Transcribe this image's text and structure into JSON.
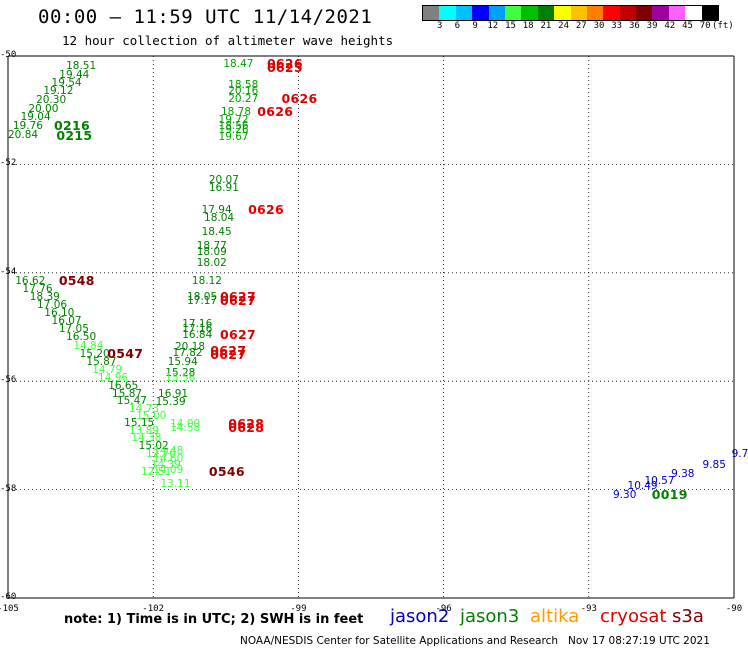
{
  "header": {
    "title": "00:00 – 11:59 UTC 11/14/2021",
    "subtitle": "12 hour collection of altimeter wave heights"
  },
  "color_scale": {
    "colors": [
      "#808080",
      "#00ffff",
      "#00c0ff",
      "#0000ff",
      "#00a0ff",
      "#40ff40",
      "#00c000",
      "#008000",
      "#ffff00",
      "#ffc000",
      "#ff8000",
      "#ff0000",
      "#c00000",
      "#800000",
      "#a000a0",
      "#ff60ff",
      "#ffffff",
      "#000000"
    ],
    "labels": [
      "3",
      "6",
      "9",
      "12",
      "15",
      "18",
      "21",
      "24",
      "27",
      "30",
      "33",
      "36",
      "39",
      "42",
      "45",
      "70",
      "(ft)"
    ]
  },
  "axes": {
    "lat_labels": [
      "-50",
      "-52",
      "-54",
      "-56",
      "-58",
      "-60"
    ],
    "lon_labels": [
      "-105",
      "-102",
      "-99",
      "-96",
      "-93",
      "-90"
    ]
  },
  "satellites": {
    "jason2": {
      "name": "jason2",
      "color": "#0000c0"
    },
    "jason3": {
      "name": "jason3",
      "color": "#008000"
    },
    "altika": {
      "name": "altika",
      "color": "#ff9900"
    },
    "cryosat": {
      "name": "cryosat",
      "color": "#e00000"
    },
    "s3a": {
      "name": "s3a",
      "color": "#800000"
    }
  },
  "observations": [
    {
      "text": "18.51",
      "lon": -103.8,
      "lat": -50.1,
      "c": "#008000"
    },
    {
      "text": "19.44",
      "lon": -103.94,
      "lat": -50.25,
      "c": "#008000"
    },
    {
      "text": "19.54",
      "lon": -104.1,
      "lat": -50.4,
      "c": "#008000"
    },
    {
      "text": "19.12",
      "lon": -104.27,
      "lat": -50.56,
      "c": "#008000"
    },
    {
      "text": "20.30",
      "lon": -104.42,
      "lat": -50.72,
      "c": "#008000"
    },
    {
      "text": "20.00",
      "lon": -104.58,
      "lat": -50.88,
      "c": "#008000"
    },
    {
      "text": "19.04",
      "lon": -104.74,
      "lat": -51.04,
      "c": "#008000"
    },
    {
      "text": "19.76",
      "lon": -104.9,
      "lat": -51.2,
      "c": "#008000"
    },
    {
      "text": "20.84",
      "lon": -105.0,
      "lat": -51.36,
      "c": "#008000"
    },
    {
      "text": "0216",
      "lon": -104.05,
      "lat": -51.2,
      "c": "#008000",
      "tag": true
    },
    {
      "text": "0215",
      "lon": -104.0,
      "lat": -51.38,
      "c": "#008000",
      "tag": true
    },
    {
      "text": "18.47",
      "lon": -100.55,
      "lat": -50.05,
      "c": "#00a000"
    },
    {
      "text": "18.58",
      "lon": -100.45,
      "lat": -50.45,
      "c": "#00a000"
    },
    {
      "text": "20.16",
      "lon": -100.45,
      "lat": -50.55,
      "c": "#00a000"
    },
    {
      "text": "20.27",
      "lon": -100.45,
      "lat": -50.7,
      "c": "#00a000"
    },
    {
      "text": "18.78",
      "lon": -100.6,
      "lat": -50.95,
      "c": "#00a000"
    },
    {
      "text": "19.72",
      "lon": -100.65,
      "lat": -51.08,
      "c": "#00a000"
    },
    {
      "text": "18.56",
      "lon": -100.65,
      "lat": -51.2,
      "c": "#00a000"
    },
    {
      "text": "19.26",
      "lon": -100.65,
      "lat": -51.28,
      "c": "#00a000"
    },
    {
      "text": "19.67",
      "lon": -100.65,
      "lat": -51.4,
      "c": "#00a000"
    },
    {
      "text": "0626",
      "lon": -99.65,
      "lat": -50.05,
      "c": "#e00000",
      "tag": true
    },
    {
      "text": "0625",
      "lon": -99.65,
      "lat": -50.12,
      "c": "#e00000",
      "tag": true
    },
    {
      "text": "0626",
      "lon": -99.35,
      "lat": -50.7,
      "c": "#e00000",
      "tag": true
    },
    {
      "text": "0626",
      "lon": -99.85,
      "lat": -50.95,
      "c": "#e00000",
      "tag": true
    },
    {
      "text": "20.07",
      "lon": -100.85,
      "lat": -52.2,
      "c": "#008000"
    },
    {
      "text": "16.91",
      "lon": -100.85,
      "lat": -52.35,
      "c": "#008000"
    },
    {
      "text": "17.94",
      "lon": -101.0,
      "lat": -52.75,
      "c": "#008000"
    },
    {
      "text": "18.04",
      "lon": -100.95,
      "lat": -52.9,
      "c": "#008000"
    },
    {
      "text": "18.45",
      "lon": -101.0,
      "lat": -53.15,
      "c": "#008000"
    },
    {
      "text": "18.77",
      "lon": -101.1,
      "lat": -53.42,
      "c": "#008000"
    },
    {
      "text": "18.09",
      "lon": -101.1,
      "lat": -53.52,
      "c": "#008000"
    },
    {
      "text": "18.02",
      "lon": -101.1,
      "lat": -53.72,
      "c": "#008000"
    },
    {
      "text": "18.12",
      "lon": -101.2,
      "lat": -54.05,
      "c": "#008000"
    },
    {
      "text": "0626",
      "lon": -100.04,
      "lat": -52.75,
      "c": "#e00000",
      "tag": true
    },
    {
      "text": "16.62",
      "lon": -104.85,
      "lat": -54.05,
      "c": "#008000"
    },
    {
      "text": "17.76",
      "lon": -104.7,
      "lat": -54.2,
      "c": "#008000"
    },
    {
      "text": "18.39",
      "lon": -104.55,
      "lat": -54.35,
      "c": "#008000"
    },
    {
      "text": "17.06",
      "lon": -104.4,
      "lat": -54.5,
      "c": "#008000"
    },
    {
      "text": "16.10",
      "lon": -104.25,
      "lat": -54.65,
      "c": "#008000"
    },
    {
      "text": "16.07",
      "lon": -104.1,
      "lat": -54.8,
      "c": "#008000"
    },
    {
      "text": "17.05",
      "lon": -103.95,
      "lat": -54.95,
      "c": "#008000"
    },
    {
      "text": "16.50",
      "lon": -103.8,
      "lat": -55.1,
      "c": "#008000"
    },
    {
      "text": "14.84",
      "lon": -103.65,
      "lat": -55.25,
      "c": "#40ff40"
    },
    {
      "text": "15.20",
      "lon": -103.52,
      "lat": -55.4,
      "c": "#008000"
    },
    {
      "text": "15.87",
      "lon": -103.38,
      "lat": -55.55,
      "c": "#008000"
    },
    {
      "text": "14.79",
      "lon": -103.26,
      "lat": -55.7,
      "c": "#40ff40"
    },
    {
      "text": "14.96",
      "lon": -103.14,
      "lat": -55.85,
      "c": "#40ff40"
    },
    {
      "text": "16.65",
      "lon": -102.93,
      "lat": -56.0,
      "c": "#008000"
    },
    {
      "text": "15.87",
      "lon": -102.85,
      "lat": -56.15,
      "c": "#008000"
    },
    {
      "text": "15.47",
      "lon": -102.75,
      "lat": -56.28,
      "c": "#008000"
    },
    {
      "text": "14.73",
      "lon": -102.5,
      "lat": -56.42,
      "c": "#40ff40"
    },
    {
      "text": "15.00",
      "lon": -102.35,
      "lat": -56.55,
      "c": "#40ff40"
    },
    {
      "text": "15.15",
      "lon": -102.6,
      "lat": -56.68,
      "c": "#008000"
    },
    {
      "text": "13.89",
      "lon": -102.5,
      "lat": -56.82,
      "c": "#40ff40"
    },
    {
      "text": "14.38",
      "lon": -102.45,
      "lat": -56.95,
      "c": "#40ff40"
    },
    {
      "text": "15.02",
      "lon": -102.3,
      "lat": -57.1,
      "c": "#008000"
    },
    {
      "text": "12.70",
      "lon": -102.15,
      "lat": -57.25,
      "c": "#40ff40"
    },
    {
      "text": "14.39",
      "lon": -102.05,
      "lat": -57.45,
      "c": "#40ff40"
    },
    {
      "text": "12.51",
      "lon": -102.25,
      "lat": -57.58,
      "c": "#40ff40"
    },
    {
      "text": "13.11",
      "lon": -101.85,
      "lat": -57.8,
      "c": "#40ff40"
    },
    {
      "text": "0548",
      "lon": -103.95,
      "lat": -54.05,
      "c": "#800000",
      "tag": true
    },
    {
      "text": "0547",
      "lon": -102.95,
      "lat": -55.4,
      "c": "#800000",
      "tag": true
    },
    {
      "text": "18.05",
      "lon": -101.3,
      "lat": -54.35,
      "c": "#008000"
    },
    {
      "text": "17.17",
      "lon": -101.3,
      "lat": -54.42,
      "c": "#008000"
    },
    {
      "text": "17.16",
      "lon": -101.4,
      "lat": -54.85,
      "c": "#008000"
    },
    {
      "text": "17.16",
      "lon": -101.4,
      "lat": -54.95,
      "c": "#008000"
    },
    {
      "text": "16.84",
      "lon": -101.4,
      "lat": -55.05,
      "c": "#008000"
    },
    {
      "text": "20.18",
      "lon": -101.55,
      "lat": -55.28,
      "c": "#008000"
    },
    {
      "text": "17.82",
      "lon": -101.6,
      "lat": -55.38,
      "c": "#008000"
    },
    {
      "text": "15.94",
      "lon": -101.7,
      "lat": -55.55,
      "c": "#008000"
    },
    {
      "text": "15.28",
      "lon": -101.75,
      "lat": -55.75,
      "c": "#008000"
    },
    {
      "text": "15.56",
      "lon": -101.75,
      "lat": -55.85,
      "c": "#40ff40"
    },
    {
      "text": "16.91",
      "lon": -101.9,
      "lat": -56.15,
      "c": "#008000"
    },
    {
      "text": "15.39",
      "lon": -101.95,
      "lat": -56.3,
      "c": "#008000"
    },
    {
      "text": "0627",
      "lon": -100.62,
      "lat": -54.35,
      "c": "#e00000",
      "tag": true
    },
    {
      "text": "0627",
      "lon": -100.62,
      "lat": -54.42,
      "c": "#e00000",
      "tag": true
    },
    {
      "text": "0627",
      "lon": -100.62,
      "lat": -55.05,
      "c": "#e00000",
      "tag": true
    },
    {
      "text": "0627",
      "lon": -100.82,
      "lat": -55.35,
      "c": "#e00000",
      "tag": true
    },
    {
      "text": "0627",
      "lon": -100.82,
      "lat": -55.42,
      "c": "#e00000",
      "tag": true
    },
    {
      "text": "14.00",
      "lon": -101.65,
      "lat": -56.7,
      "c": "#40ff40"
    },
    {
      "text": "14.58",
      "lon": -101.65,
      "lat": -56.77,
      "c": "#40ff40"
    },
    {
      "text": "14.48",
      "lon": -102.0,
      "lat": -57.2,
      "c": "#40ff40"
    },
    {
      "text": "14.60",
      "lon": -102.0,
      "lat": -57.35,
      "c": "#40ff40"
    },
    {
      "text": "14.09",
      "lon": -102.0,
      "lat": -57.55,
      "c": "#40ff40"
    },
    {
      "text": "0628",
      "lon": -100.45,
      "lat": -56.7,
      "c": "#e00000",
      "tag": true
    },
    {
      "text": "0628",
      "lon": -100.45,
      "lat": -56.77,
      "c": "#e00000",
      "tag": true
    },
    {
      "text": "0546",
      "lon": -100.85,
      "lat": -57.58,
      "c": "#800000",
      "tag": true
    },
    {
      "text": "9.30",
      "lon": -92.5,
      "lat": -58.0,
      "c": "#0000c0"
    },
    {
      "text": "10.49",
      "lon": -92.2,
      "lat": -57.85,
      "c": "#0000c0"
    },
    {
      "text": "10.57",
      "lon": -91.85,
      "lat": -57.75,
      "c": "#0000c0"
    },
    {
      "text": "9.38",
      "lon": -91.3,
      "lat": -57.62,
      "c": "#0000c0"
    },
    {
      "text": "9.85",
      "lon": -90.65,
      "lat": -57.45,
      "c": "#0000c0"
    },
    {
      "text": "9.7",
      "lon": -90.05,
      "lat": -57.25,
      "c": "#0000c0"
    },
    {
      "text": "0019",
      "lon": -91.7,
      "lat": -58.0,
      "c": "#008000",
      "tag": true
    }
  ],
  "footer": {
    "note": "note: 1) Time is in UTC; 2) SWH is in feet",
    "credit": "NOAA/NESDIS Center for Satellite Applications and Research   Nov 17 08:27:19 UTC 2021"
  }
}
